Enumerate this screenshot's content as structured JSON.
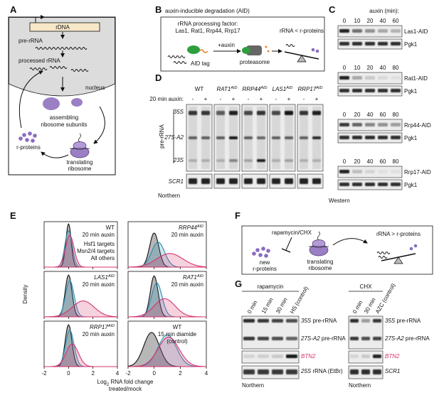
{
  "panel_labels": [
    "A",
    "B",
    "C",
    "D",
    "E",
    "F",
    "G"
  ],
  "a": {
    "rdna": "rDNA",
    "pre_rrna": "pre-rRNA",
    "processed": "processed rRNA",
    "nucleus": "nucleus",
    "assembling": [
      "assembling",
      "ribosome subunits"
    ],
    "r_proteins": "r-proteins",
    "translating": [
      "translating",
      "ribosome"
    ]
  },
  "b": {
    "title": "auxin-inducible degradation (AID)",
    "factor": [
      "rRNA processing factor:",
      "Las1, Rat1, Rrp44, Rrp17"
    ],
    "tag": "AID tag",
    "auxin": "+auxin",
    "proteasome": "proteasome",
    "result": "rRNA < r-proteins"
  },
  "c": {
    "header": "auxin (min):",
    "blots": [
      {
        "name": "Las1-AID",
        "times": [
          0,
          10,
          20,
          40,
          60
        ],
        "loading": "Pgk1"
      },
      {
        "name": "Rat1-AID",
        "times": [
          0,
          10,
          20,
          40,
          80
        ],
        "loading": "Pgk1"
      },
      {
        "name": "Rrp44-AID",
        "times": [
          0,
          20,
          40,
          60,
          80
        ],
        "loading": "Pgk1"
      },
      {
        "name": "Rrp17-AID",
        "times": [
          0,
          20,
          40,
          60,
          80
        ],
        "loading": "Pgk1"
      }
    ],
    "footer": "Western"
  },
  "d": {
    "condition": "20 min auxin:",
    "strains": [
      {
        "name": "WT"
      },
      {
        "name": "RAT1",
        "sup": "AID"
      },
      {
        "name": "RRP44",
        "sup": "AID"
      },
      {
        "name": "LAS1",
        "sup": "AID"
      },
      {
        "name": "RRP17",
        "sup": "AID"
      }
    ],
    "signs": [
      "-",
      "+"
    ],
    "bands": [
      "35S",
      "27S-A2",
      "23S"
    ],
    "group": "pre-rRNA",
    "loading": "SCR1",
    "footer": "Northern"
  },
  "e": {
    "y_label": "Density",
    "x_label": {
      "pre": "Log",
      "sub": "2",
      "post": " RNA fold change",
      "line2": "treated/mock"
    },
    "xlim": [
      -2,
      4
    ],
    "xticks": [
      -2,
      0,
      2,
      4
    ],
    "legend": [
      {
        "name": "Hsf1 targets",
        "color": "#d6336c"
      },
      {
        "name": "Msn2/4 targets",
        "color": "#2b8cb0"
      },
      {
        "name": "All others",
        "color": "#111111"
      }
    ],
    "plots": [
      {
        "strain": "WT",
        "condition": [
          "20 min auxin"
        ]
      },
      {
        "strain": "RRP44",
        "sup": "AID",
        "condition": [
          "20 min auxin"
        ]
      },
      {
        "strain": "LAS1",
        "sup": "AID",
        "condition": [
          "20 min auxin"
        ]
      },
      {
        "strain": "RAT1",
        "sup": "AID",
        "condition": [
          "20 min auxin"
        ]
      },
      {
        "strain": "RRP17",
        "sup": "AID",
        "condition": [
          "20 min auxin"
        ]
      },
      {
        "strain": "WT",
        "condition": [
          "15 min diamide",
          "(control)"
        ]
      }
    ]
  },
  "f": {
    "drug": "rapamycin/CHX",
    "new": [
      "new",
      "r-proteins"
    ],
    "translating": [
      "translating",
      "ribosome"
    ],
    "result": "rRNA > r-proteins"
  },
  "g": {
    "left": {
      "drug": "rapamycin",
      "lanes": [
        "0 min",
        "15 min",
        "30 min",
        "HS (control)"
      ],
      "bands": [
        {
          "name": "35S",
          "desc": " pre-rRNA"
        },
        {
          "name": "27S-A2",
          "desc": " pre-rRNA"
        },
        {
          "name": "BTN2"
        },
        {
          "name": "25S",
          "desc": " rRNA (EtBr)"
        }
      ],
      "footer": "Northern"
    },
    "right": {
      "drug": "CHX",
      "lanes": [
        "0 min",
        "30 min",
        "AZC (control)"
      ],
      "bands": [
        {
          "name": "35S",
          "desc": " pre-rRNA"
        },
        {
          "name": "27S-A2",
          "desc": " pre-rRNA"
        },
        {
          "name": "BTN2"
        },
        {
          "name": "SCR1"
        }
      ],
      "footer": "Northern"
    }
  }
}
